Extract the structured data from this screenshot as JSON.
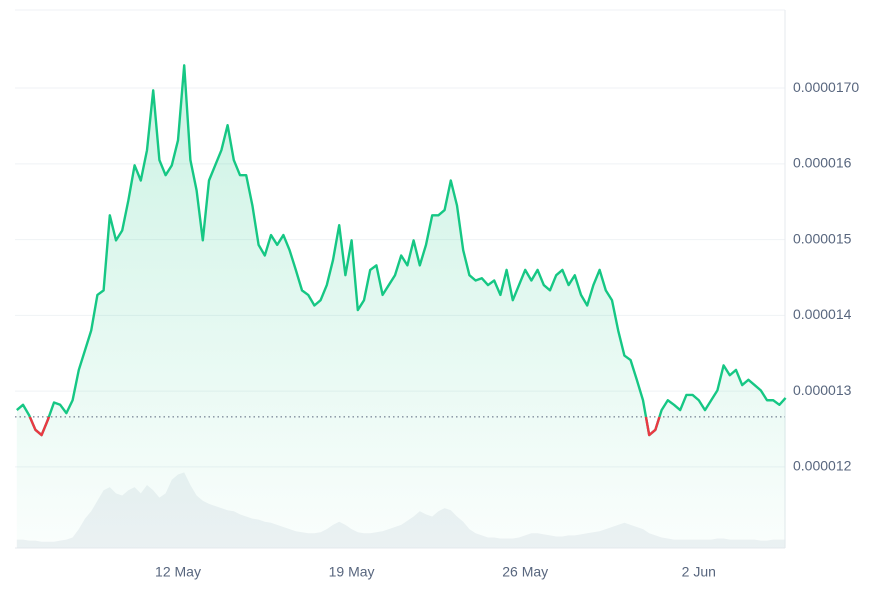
{
  "chart_data": {
    "type": "line",
    "categories": [
      null,
      null,
      null,
      null,
      null,
      null,
      null,
      null,
      null,
      null,
      null,
      null,
      null,
      null,
      null,
      null,
      null,
      null,
      null,
      null,
      null,
      null,
      null,
      null,
      null,
      null,
      "12 May",
      null,
      null,
      null,
      null,
      null,
      null,
      null,
      null,
      null,
      null,
      null,
      null,
      null,
      null,
      null,
      null,
      null,
      null,
      null,
      null,
      null,
      null,
      null,
      null,
      null,
      null,
      null,
      "19 May",
      null,
      null,
      null,
      null,
      null,
      null,
      null,
      null,
      null,
      null,
      null,
      null,
      null,
      null,
      null,
      null,
      null,
      null,
      null,
      null,
      null,
      null,
      null,
      null,
      null,
      null,
      null,
      "26 May",
      null,
      null,
      null,
      null,
      null,
      null,
      null,
      null,
      null,
      null,
      null,
      null,
      null,
      null,
      null,
      null,
      null,
      null,
      null,
      null,
      null,
      null,
      null,
      null,
      null,
      null,
      null,
      "2 Jun",
      null,
      null,
      null,
      null,
      null,
      null,
      null,
      null,
      null,
      null,
      null,
      null,
      null,
      null
    ],
    "values": [
      1.275e-05,
      1.282e-05,
      1.268e-05,
      1.249e-05,
      1.242e-05,
      1.262e-05,
      1.285e-05,
      1.282e-05,
      1.271e-05,
      1.288e-05,
      1.328e-05,
      1.354e-05,
      1.38e-05,
      1.427e-05,
      1.433e-05,
      1.532e-05,
      1.499e-05,
      1.512e-05,
      1.552e-05,
      1.598e-05,
      1.578e-05,
      1.618e-05,
      1.697e-05,
      1.605e-05,
      1.585e-05,
      1.598e-05,
      1.631e-05,
      1.73e-05,
      1.605e-05,
      1.565e-05,
      1.499e-05,
      1.578e-05,
      1.598e-05,
      1.618e-05,
      1.651e-05,
      1.605e-05,
      1.585e-05,
      1.585e-05,
      1.545e-05,
      1.493e-05,
      1.479e-05,
      1.506e-05,
      1.493e-05,
      1.506e-05,
      1.486e-05,
      1.46e-05,
      1.433e-05,
      1.427e-05,
      1.413e-05,
      1.42e-05,
      1.44e-05,
      1.473e-05,
      1.519e-05,
      1.453e-05,
      1.499e-05,
      1.407e-05,
      1.42e-05,
      1.46e-05,
      1.466e-05,
      1.427e-05,
      1.44e-05,
      1.453e-05,
      1.479e-05,
      1.466e-05,
      1.499e-05,
      1.466e-05,
      1.493e-05,
      1.532e-05,
      1.532e-05,
      1.539e-05,
      1.578e-05,
      1.545e-05,
      1.486e-05,
      1.453e-05,
      1.446e-05,
      1.449e-05,
      1.44e-05,
      1.446e-05,
      1.427e-05,
      1.46e-05,
      1.42e-05,
      1.44e-05,
      1.46e-05,
      1.446e-05,
      1.46e-05,
      1.44e-05,
      1.433e-05,
      1.453e-05,
      1.46e-05,
      1.44e-05,
      1.453e-05,
      1.427e-05,
      1.413e-05,
      1.44e-05,
      1.46e-05,
      1.433e-05,
      1.42e-05,
      1.38e-05,
      1.347e-05,
      1.341e-05,
      1.315e-05,
      1.288e-05,
      1.242e-05,
      1.249e-05,
      1.275e-05,
      1.288e-05,
      1.282e-05,
      1.275e-05,
      1.295e-05,
      1.295e-05,
      1.288e-05,
      1.275e-05,
      1.288e-05,
      1.301e-05,
      1.334e-05,
      1.321e-05,
      1.328e-05,
      1.308e-05,
      1.315e-05,
      1.308e-05,
      1.301e-05,
      1.288e-05,
      1.288e-05,
      1.282e-05,
      1.291e-05
    ],
    "color": "#16c784",
    "down_color": "#ea3943",
    "baseline": 1.266e-05,
    "volume": [
      8,
      8,
      7,
      7,
      6,
      6,
      6,
      7,
      8,
      10,
      18,
      28,
      35,
      45,
      55,
      58,
      52,
      50,
      55,
      58,
      52,
      60,
      55,
      48,
      52,
      65,
      70,
      72,
      60,
      50,
      45,
      42,
      40,
      38,
      36,
      35,
      32,
      30,
      28,
      27,
      25,
      24,
      22,
      20,
      18,
      16,
      15,
      14,
      14,
      15,
      18,
      22,
      25,
      22,
      18,
      15,
      14,
      14,
      15,
      16,
      18,
      20,
      22,
      26,
      30,
      35,
      32,
      30,
      35,
      38,
      36,
      30,
      25,
      18,
      14,
      12,
      10,
      10,
      9,
      9,
      9,
      10,
      12,
      14,
      14,
      13,
      12,
      11,
      11,
      12,
      12,
      13,
      14,
      15,
      16,
      18,
      20,
      22,
      24,
      22,
      20,
      18,
      14,
      12,
      10,
      9,
      8,
      8,
      8,
      8,
      8,
      8,
      8,
      9,
      9,
      8,
      8,
      8,
      8,
      8,
      7,
      7,
      8,
      8,
      8
    ],
    "volume_color": "#eff2f5",
    "ylim": [
      1.093e-05,
      1.803e-05
    ],
    "yticks": [
      {
        "value": 1.2e-05,
        "label": "0.000012"
      },
      1.3e-05,
      1.4e-05,
      1.5e-05,
      1.6e-05,
      {
        "value": 1.7e-05,
        "label": "0.0000170"
      }
    ],
    "grid": true
  }
}
